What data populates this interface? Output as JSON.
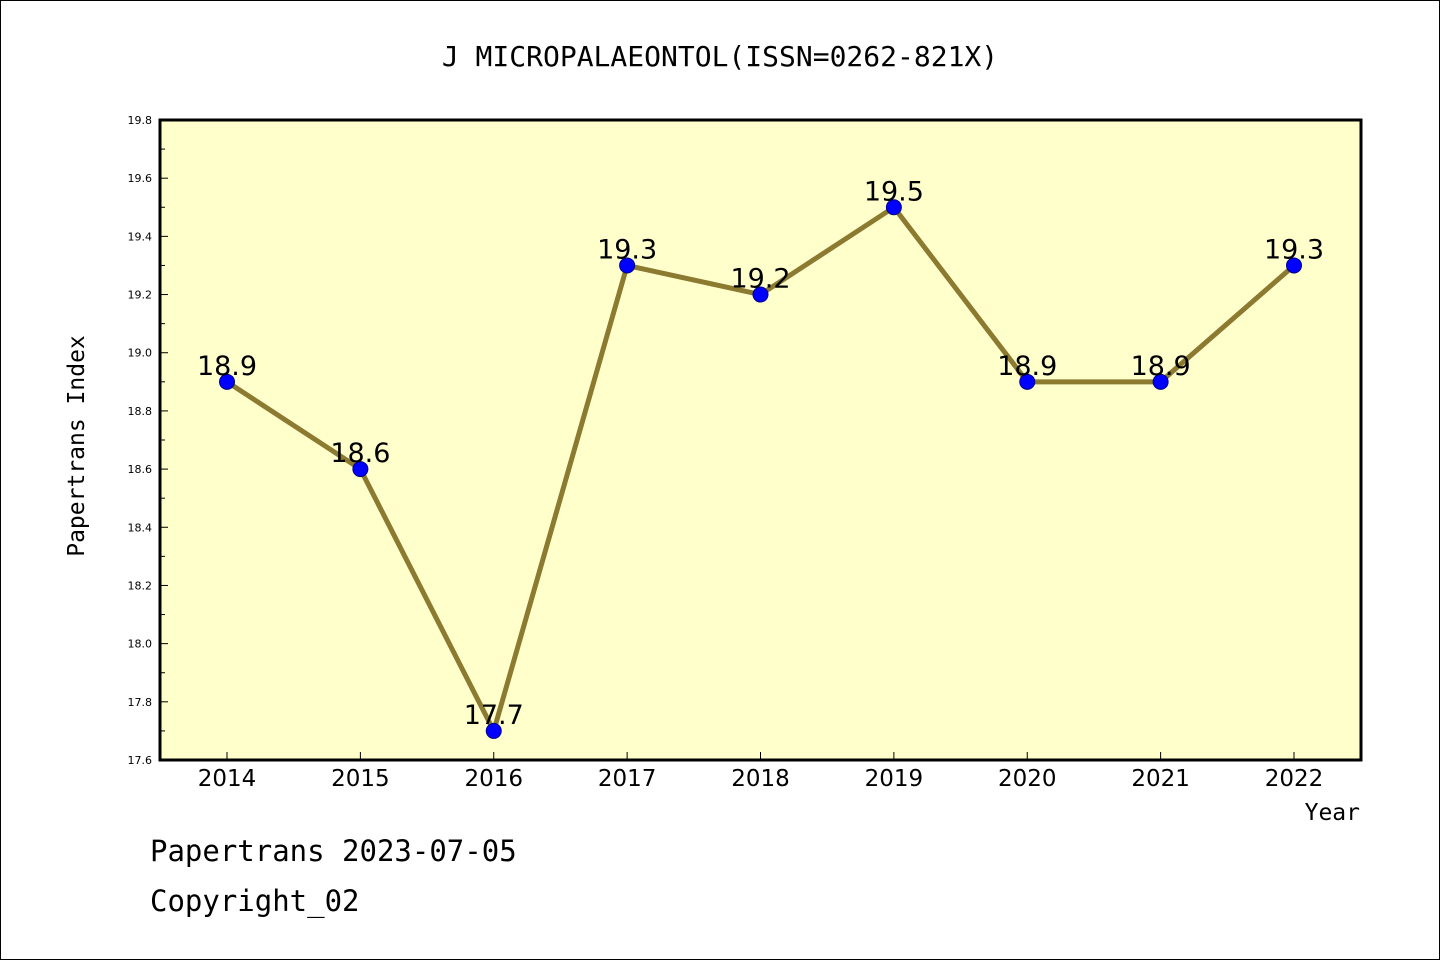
{
  "chart_data": {
    "type": "line",
    "title": "J MICROPALAEONTOL(ISSN=0262-821X)",
    "xlabel": "Year",
    "ylabel": "Papertrans Index",
    "categories": [
      "2014",
      "2015",
      "2016",
      "2017",
      "2018",
      "2019",
      "2020",
      "2021",
      "2022"
    ],
    "values": [
      18.9,
      18.6,
      17.7,
      19.3,
      19.2,
      19.5,
      18.9,
      18.9,
      19.3
    ],
    "data_labels": [
      "18.9",
      "18.6",
      "17.7",
      "19.3",
      "19.2",
      "19.5",
      "18.9",
      "18.9",
      "19.3"
    ],
    "ylim": [
      17.6,
      19.8
    ],
    "yticks": [
      "17.6",
      "17.8",
      "18.0",
      "18.2",
      "18.4",
      "18.6",
      "18.8",
      "19.0",
      "19.2",
      "19.4",
      "19.6",
      "19.8"
    ],
    "grid": false,
    "colors": {
      "plot_background": "#ffffcc",
      "line": "#8b7a30",
      "marker": "#0000ff",
      "marker_edge": "#00008b"
    }
  },
  "footer": {
    "line1": "Papertrans 2023-07-05",
    "line2": "Copyright_02"
  }
}
